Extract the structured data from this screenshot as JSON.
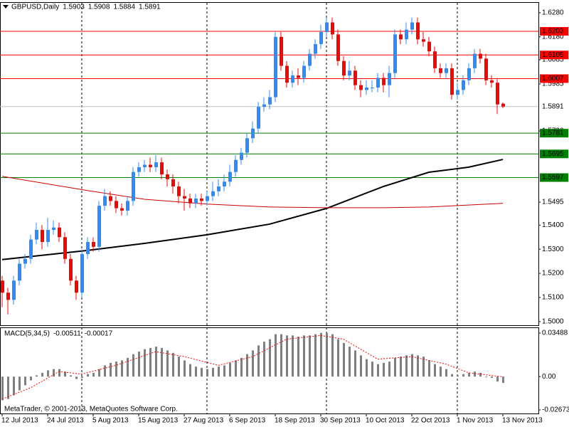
{
  "chart_data": [
    {
      "type": "candlestick",
      "title": "GBPUSD,Daily",
      "categories": [
        "12 Jul 2013",
        null,
        null,
        null,
        null,
        null,
        null,
        null,
        "24 Jul 2013",
        null,
        null,
        null,
        null,
        null,
        null,
        null,
        "5 Aug 2013",
        null,
        null,
        null,
        null,
        null,
        null,
        null,
        "15 Aug 2013",
        null,
        null,
        null,
        null,
        null,
        null,
        null,
        "27 Aug 2013",
        null,
        null,
        null,
        null,
        null,
        null,
        null,
        "6 Sep 2013",
        null,
        null,
        null,
        null,
        null,
        null,
        null,
        "18 Sep 2013",
        null,
        null,
        null,
        null,
        null,
        null,
        null,
        "30 Sep 2013",
        null,
        null,
        null,
        null,
        null,
        null,
        null,
        "10 Oct 2013",
        null,
        null,
        null,
        null,
        null,
        null,
        null,
        "22 Oct 2013",
        null,
        null,
        null,
        null,
        null,
        null,
        null,
        "1 Nov 2013",
        null,
        null,
        null,
        null,
        null,
        null,
        null,
        "13 Nov 2013"
      ],
      "open": [
        1.517,
        1.512,
        1.509,
        1.517,
        1.524,
        1.526,
        1.534,
        1.538,
        1.533,
        1.538,
        1.539,
        1.535,
        1.526,
        1.517,
        1.512,
        1.528,
        1.533,
        1.531,
        1.548,
        1.552,
        1.55,
        1.547,
        1.546,
        1.55,
        1.562,
        1.564,
        1.565,
        1.564,
        1.566,
        1.561,
        1.559,
        1.556,
        1.552,
        1.551,
        1.549,
        1.551,
        1.55,
        1.552,
        1.554,
        1.556,
        1.558,
        1.562,
        1.567,
        1.57,
        1.576,
        1.58,
        1.589,
        1.59,
        1.593,
        1.618,
        1.606,
        1.599,
        1.602,
        1.601,
        1.606,
        1.611,
        1.615,
        1.62,
        1.624,
        1.619,
        1.608,
        1.602,
        1.604,
        1.598,
        1.596,
        1.597,
        1.597,
        1.601,
        1.598,
        1.603,
        1.619,
        1.617,
        1.621,
        1.624,
        1.617,
        1.616,
        1.612,
        1.605,
        1.603,
        1.605,
        1.594,
        1.596,
        1.6,
        1.605,
        1.611,
        1.609,
        1.6,
        1.599,
        1.5903
      ],
      "high": [
        1.519,
        1.514,
        1.519,
        1.526,
        1.528,
        1.536,
        1.541,
        1.54,
        1.543,
        1.542,
        1.541,
        1.537,
        1.528,
        1.519,
        1.53,
        1.535,
        1.535,
        1.55,
        1.555,
        1.554,
        1.552,
        1.549,
        1.552,
        1.564,
        1.566,
        1.567,
        1.568,
        1.569,
        1.568,
        1.563,
        1.561,
        1.558,
        1.555,
        1.553,
        1.553,
        1.553,
        1.554,
        1.558,
        1.559,
        1.561,
        1.565,
        1.569,
        1.572,
        1.578,
        1.583,
        1.591,
        1.593,
        1.596,
        1.62,
        1.62,
        1.608,
        1.604,
        1.605,
        1.608,
        1.613,
        1.617,
        1.623,
        1.626,
        1.626,
        1.621,
        1.61,
        1.608,
        1.606,
        1.6,
        1.6,
        1.6,
        1.603,
        1.603,
        1.606,
        1.621,
        1.621,
        1.624,
        1.626,
        1.626,
        1.62,
        1.618,
        1.614,
        1.607,
        1.607,
        1.607,
        1.599,
        1.602,
        1.607,
        1.613,
        1.613,
        1.611,
        1.602,
        1.601,
        1.5908
      ],
      "low": [
        1.506,
        1.503,
        1.507,
        1.515,
        1.522,
        1.524,
        1.532,
        1.53,
        1.531,
        1.536,
        1.533,
        1.524,
        1.515,
        1.509,
        1.51,
        1.526,
        1.529,
        1.529,
        1.546,
        1.548,
        1.545,
        1.544,
        1.544,
        1.548,
        1.56,
        1.562,
        1.562,
        1.562,
        1.559,
        1.556,
        1.553,
        1.549,
        1.546,
        1.547,
        1.547,
        1.548,
        1.548,
        1.55,
        1.552,
        1.554,
        1.556,
        1.56,
        1.565,
        1.568,
        1.574,
        1.578,
        1.587,
        1.588,
        1.591,
        1.604,
        1.597,
        1.597,
        1.598,
        1.599,
        1.604,
        1.609,
        1.613,
        1.618,
        1.617,
        1.606,
        1.6,
        1.6,
        1.596,
        1.593,
        1.594,
        1.595,
        1.595,
        1.595,
        1.593,
        1.601,
        1.615,
        1.615,
        1.619,
        1.615,
        1.614,
        1.61,
        1.603,
        1.601,
        1.601,
        1.592,
        1.592,
        1.594,
        1.598,
        1.603,
        1.607,
        1.598,
        1.597,
        1.586,
        1.5884
      ],
      "close": [
        1.512,
        1.509,
        1.517,
        1.524,
        1.526,
        1.534,
        1.538,
        1.533,
        1.538,
        1.539,
        1.535,
        1.526,
        1.517,
        1.512,
        1.528,
        1.533,
        1.531,
        1.548,
        1.552,
        1.55,
        1.547,
        1.546,
        1.55,
        1.562,
        1.564,
        1.565,
        1.564,
        1.566,
        1.561,
        1.559,
        1.556,
        1.552,
        1.551,
        1.549,
        1.551,
        1.55,
        1.552,
        1.554,
        1.556,
        1.558,
        1.562,
        1.567,
        1.57,
        1.576,
        1.58,
        1.589,
        1.59,
        1.593,
        1.618,
        1.606,
        1.599,
        1.602,
        1.601,
        1.606,
        1.611,
        1.615,
        1.62,
        1.624,
        1.619,
        1.608,
        1.602,
        1.604,
        1.598,
        1.596,
        1.597,
        1.597,
        1.601,
        1.598,
        1.603,
        1.619,
        1.617,
        1.621,
        1.624,
        1.617,
        1.616,
        1.612,
        1.605,
        1.603,
        1.605,
        1.594,
        1.596,
        1.6,
        1.605,
        1.611,
        1.609,
        1.6,
        1.599,
        1.59,
        1.5891
      ],
      "up_color": "#2b8cff",
      "down_color": "#ff0000",
      "ylim": [
        1.4985,
        1.6321
      ],
      "yticks": [
        {
          "value": 1.628,
          "label": "1.6280"
        },
        {
          "value": 1.618,
          "label": "1.6180"
        },
        1.6085,
        1.5985,
        {
          "value": 1.579,
          "label": "1.5790"
        },
        1.5495,
        {
          "value": 1.54,
          "label": "1.5400"
        },
        {
          "value": 1.53,
          "label": "1.5300"
        },
        {
          "value": 1.52,
          "label": "1.5200"
        },
        {
          "value": 1.51,
          "label": "1.5100"
        },
        {
          "value": 1.5,
          "label": "1.5000"
        }
      ],
      "levels": [
        {
          "value": 1.6203,
          "color": "#ff0000",
          "text_color": "#ffffff"
        },
        {
          "value": 1.6105,
          "color": "#ff0000",
          "text_color": "#ffffff"
        },
        {
          "value": 1.6007,
          "color": "#ff0000",
          "text_color": "#ffffff"
        },
        {
          "value": 1.5891,
          "color": "#c0c0c0",
          "text_color": "#000000"
        },
        {
          "value": 1.5781,
          "color": "#008000",
          "text_color": "#ffffff"
        },
        {
          "value": 1.5695,
          "color": "#008000",
          "text_color": "#ffffff"
        },
        {
          "value": 1.5597,
          "color": "#008000",
          "text_color": "#ffffff"
        }
      ],
      "moving_averages": [
        {
          "color": "#000000",
          "x": [
            0,
            15,
            25,
            36,
            47,
            57,
            67,
            75,
            82,
            88
          ],
          "values": [
            1.5257,
            1.5295,
            1.5324,
            1.536,
            1.5404,
            1.5469,
            1.556,
            1.5619,
            1.564,
            1.5672
          ]
        },
        {
          "color": "#cc0000",
          "x": [
            0,
            15,
            25,
            36,
            47,
            57,
            67,
            75,
            88
          ],
          "values": [
            1.5602,
            1.5543,
            1.5507,
            1.5487,
            1.5475,
            1.5472,
            1.5472,
            1.5475,
            1.549
          ]
        }
      ],
      "period_separators": [
        14,
        36,
        57,
        80
      ],
      "grid": false
    },
    {
      "type": "bar",
      "title": "MACD(5,34,5)",
      "values": [
        -0.019,
        -0.018,
        -0.015,
        -0.011,
        -0.007,
        -0.003,
        0.001,
        0.003,
        0.005,
        0.006,
        0.006,
        0.004,
        0.001,
        -0.002,
        -0.001,
        0.002,
        0.003,
        0.006,
        0.009,
        0.011,
        0.012,
        0.013,
        0.015,
        0.018,
        0.02,
        0.022,
        0.023,
        0.024,
        0.023,
        0.021,
        0.019,
        0.016,
        0.013,
        0.01,
        0.008,
        0.007,
        0.006,
        0.007,
        0.008,
        0.009,
        0.011,
        0.013,
        0.015,
        0.018,
        0.021,
        0.025,
        0.028,
        0.03,
        0.034,
        0.034,
        0.033,
        0.033,
        0.032,
        0.033,
        0.033,
        0.034,
        0.035,
        0.035,
        0.034,
        0.03,
        0.027,
        0.024,
        0.021,
        0.017,
        0.014,
        0.012,
        0.01,
        0.011,
        0.012,
        0.015,
        0.016,
        0.017,
        0.018,
        0.017,
        0.016,
        0.013,
        0.01,
        0.008,
        0.006,
        0.002,
        0.001,
        0.002,
        0.003,
        0.004,
        0.003,
        0.0,
        -0.001,
        -0.004,
        -0.00511
      ],
      "color": "#808080",
      "signal": {
        "color": "#ff0000",
        "x": [
          0,
          5,
          10,
          14,
          20,
          27,
          32,
          38,
          44,
          50,
          56,
          60,
          66,
          72,
          78,
          82,
          88
        ],
        "values": [
          -0.018,
          -0.009,
          0.004,
          0.002,
          0.009,
          0.02,
          0.016,
          0.009,
          0.016,
          0.03,
          0.033,
          0.03,
          0.014,
          0.016,
          0.01,
          0.003,
          -0.00017
        ]
      },
      "ylim": [
        -0.0296,
        0.0389
      ],
      "yticks": [
        0.03488,
        {
          "value": 0,
          "label": "0.00"
        },
        -0.02673
      ],
      "footnote": "MetaTrader, © 2001-2013, MetaQuotes Software Corp."
    }
  ]
}
